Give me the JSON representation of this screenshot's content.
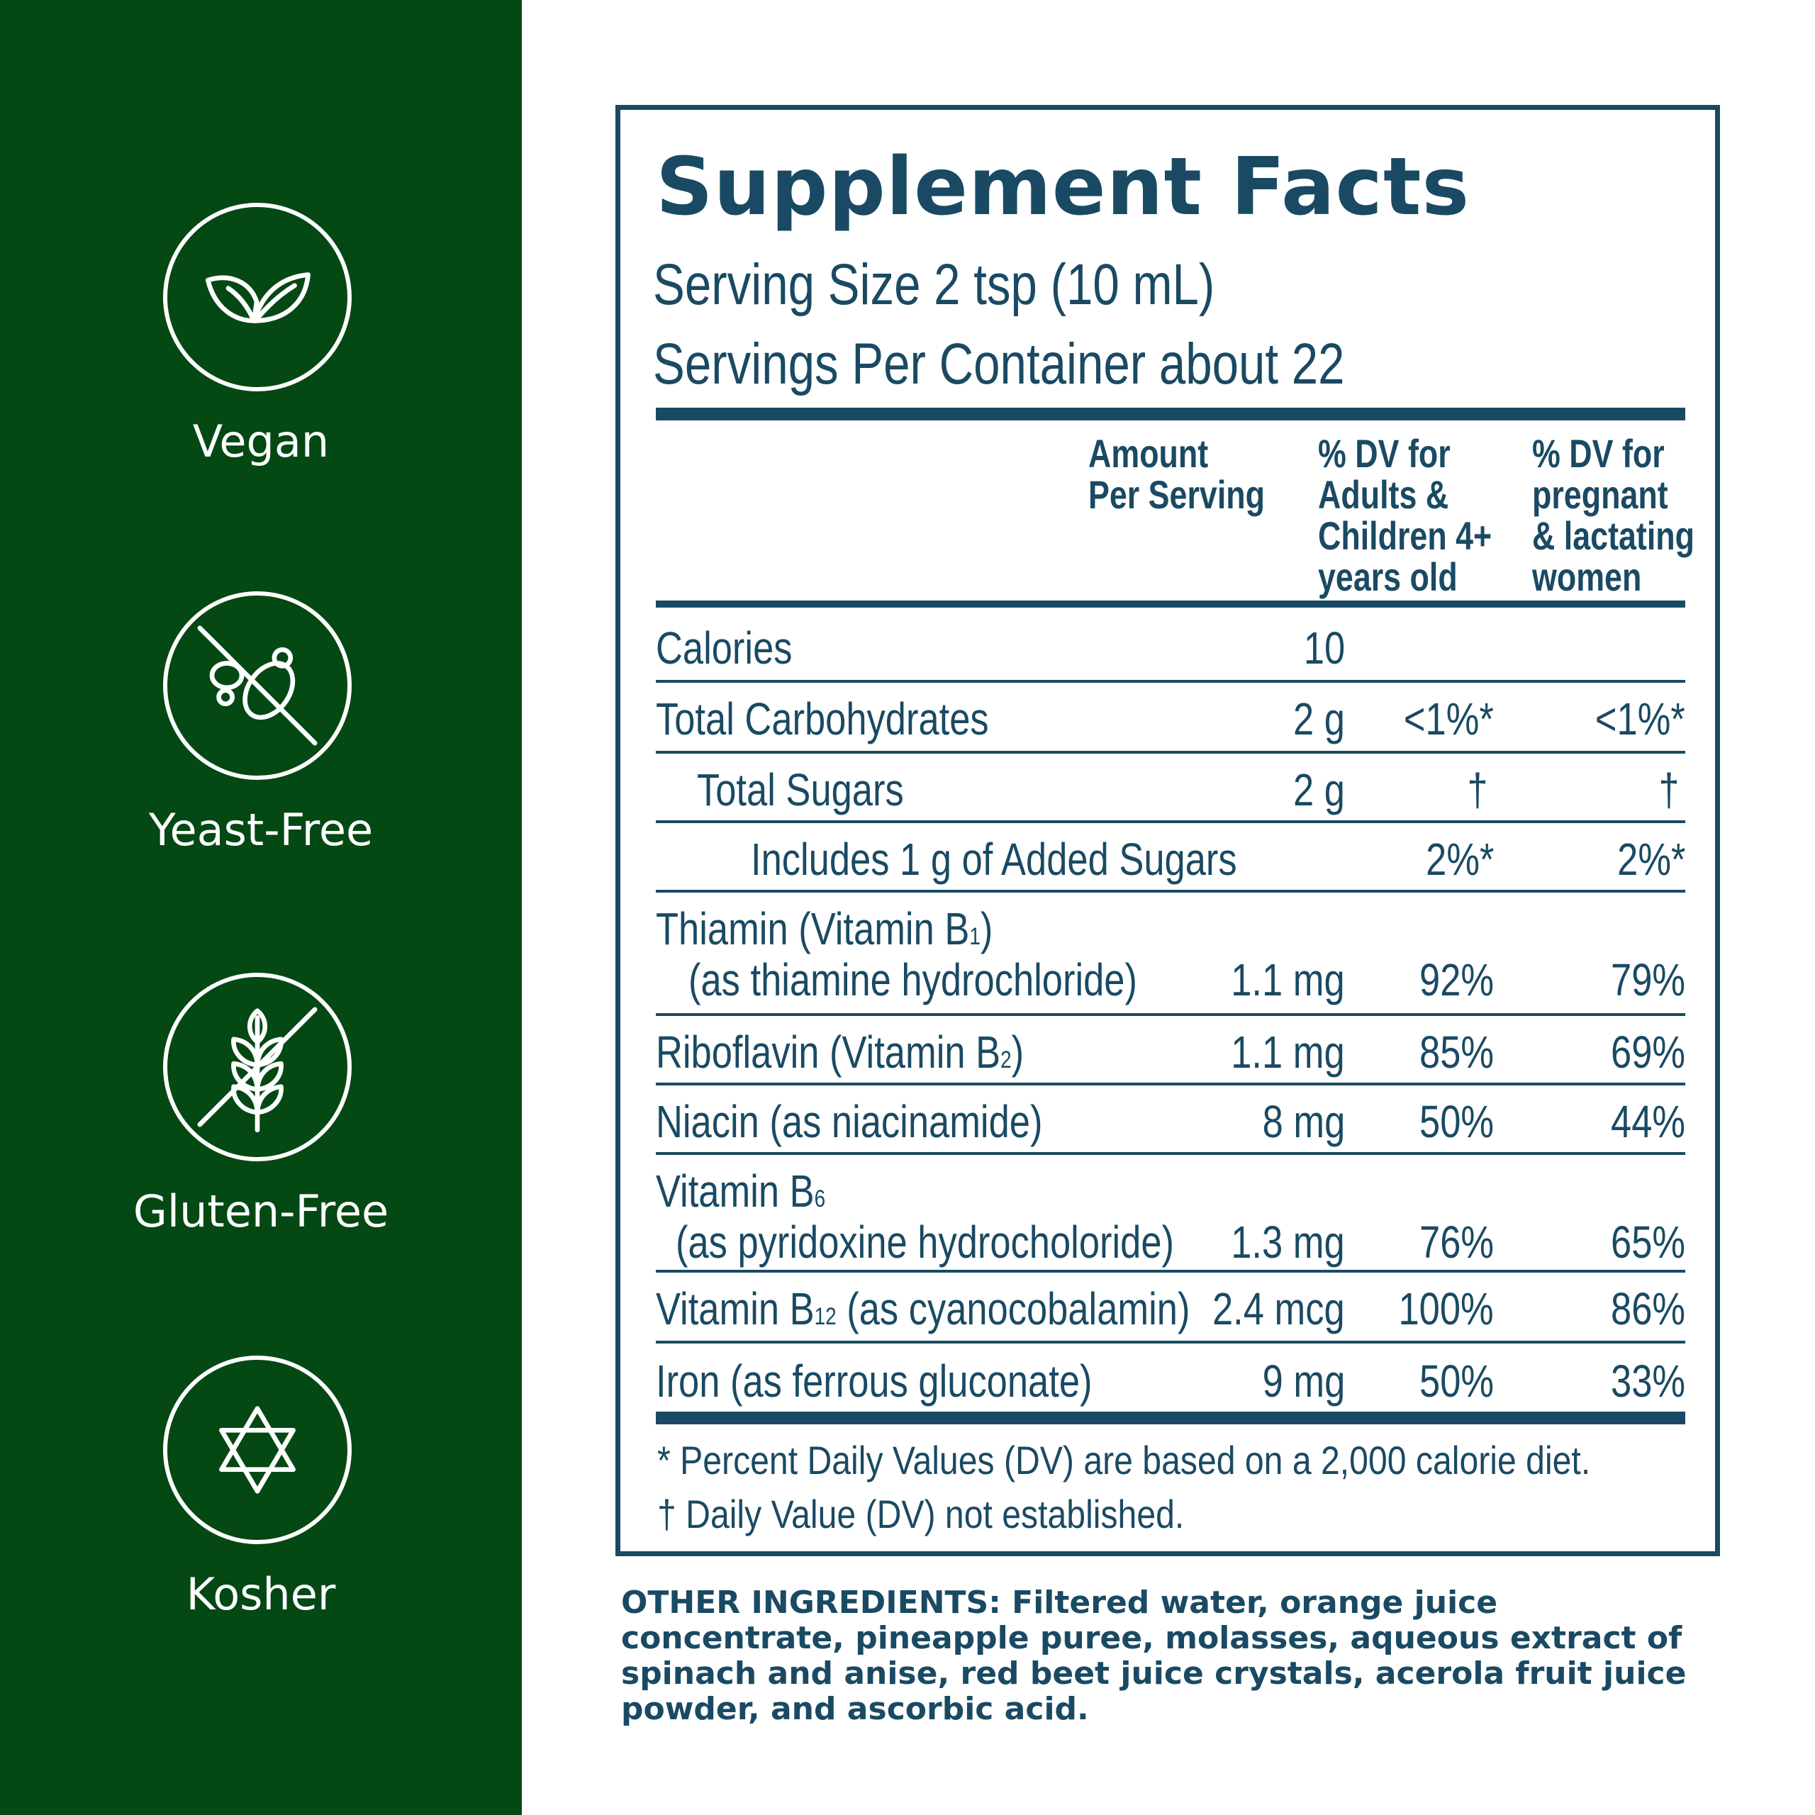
{
  "badges": [
    {
      "label": "Vegan",
      "icon": "leaf-icon"
    },
    {
      "label": "Yeast-Free",
      "icon": "no-yeast-icon"
    },
    {
      "label": "Gluten-Free",
      "icon": "no-wheat-icon"
    },
    {
      "label": "Kosher",
      "icon": "star-of-david-icon"
    }
  ],
  "facts": {
    "title": "Supplement Facts",
    "serving_size": "Serving Size 2 tsp (10 mL)",
    "servings_per_container": "Servings Per Container about 22",
    "headers": {
      "amount": "Amount\nPer Serving",
      "dv_adults": "% DV for\nAdults &\nChildren 4+\nyears old",
      "dv_pregnant": "% DV for\npregnant\n& lactating\nwomen"
    },
    "rows": [
      {
        "name": "Calories",
        "amount": "10",
        "dv_adults": "",
        "dv_pregnant": ""
      },
      {
        "name": "Total Carbohydrates",
        "amount": "2 g",
        "dv_adults": "<1%*",
        "dv_pregnant": "<1%*"
      },
      {
        "name": "Total Sugars",
        "amount": "2 g",
        "dv_adults": "†",
        "dv_pregnant": "†"
      },
      {
        "name": "Includes 1 g of Added Sugars",
        "amount": "",
        "dv_adults": "2%*",
        "dv_pregnant": "2%*"
      },
      {
        "name": "Thiamin (Vitamin B",
        "sub": "1",
        "name_end": ")",
        "name2": "(as thiamine hydrochloride)",
        "amount": "1.1 mg",
        "dv_adults": "92%",
        "dv_pregnant": "79%"
      },
      {
        "name": "Riboflavin (Vitamin B",
        "sub": "2",
        "name_end": ")",
        "amount": "1.1 mg",
        "dv_adults": "85%",
        "dv_pregnant": "69%"
      },
      {
        "name": "Niacin (as niacinamide)",
        "amount": "8 mg",
        "dv_adults": "50%",
        "dv_pregnant": "44%"
      },
      {
        "name": "Vitamin B",
        "sub": "6",
        "name_end": "",
        "name2": "(as pyridoxine hydrocholoride)",
        "amount": "1.3 mg",
        "dv_adults": "76%",
        "dv_pregnant": "65%"
      },
      {
        "name": "Vitamin B",
        "sub": "12",
        "name_end": " (as cyanocobalamin)",
        "amount": "2.4 mcg",
        "dv_adults": "100%",
        "dv_pregnant": "86%"
      },
      {
        "name": "Iron (as ferrous gluconate)",
        "amount": "9 mg",
        "dv_adults": "50%",
        "dv_pregnant": "33%"
      }
    ],
    "footnote_1": "* Percent Daily Values (DV) are based on a 2,000 calorie diet.",
    "footnote_2": "† Daily Value (DV) not established."
  },
  "ingredients": {
    "lead": "OTHER INGREDIENTS:",
    "text": " Filtered water, orange juice concentrate, pineapple puree, molasses, aqueous extract of spinach and anise, red beet juice crystals, acerola fruit juice powder, and ascorbic acid."
  },
  "colors": {
    "green": "#044814",
    "navy": "#1a4a63",
    "white": "#ffffff"
  }
}
